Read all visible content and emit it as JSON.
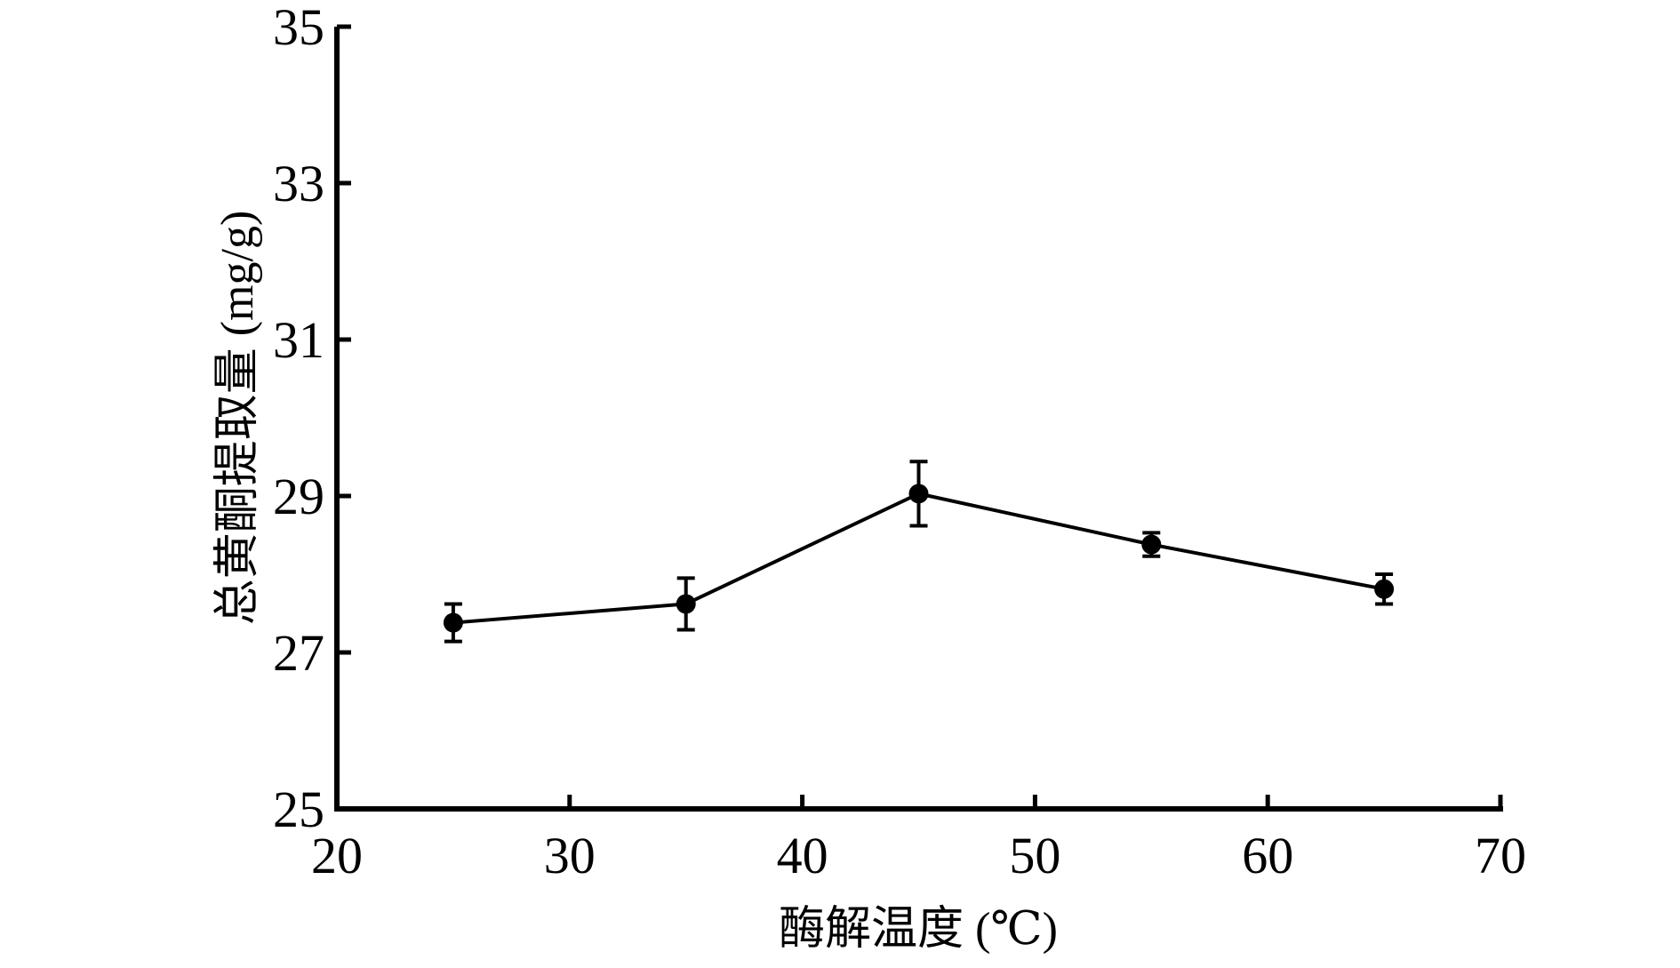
{
  "chart_data": {
    "type": "line",
    "x_label": "酶解温度 (℃)",
    "y_label": "总黄酮提取量 (mg/g)",
    "xlim": [
      20,
      70
    ],
    "xticks": [
      20,
      30,
      40,
      50,
      60,
      70
    ],
    "ylim": [
      25,
      35
    ],
    "yticks": [
      25,
      27,
      29,
      31,
      33,
      35
    ],
    "x": [
      25,
      35,
      45,
      55,
      65
    ],
    "series": [
      {
        "color": "#000000",
        "values": [
          27.38,
          27.62,
          29.03,
          28.38,
          27.81
        ],
        "errors": [
          0.24,
          0.33,
          0.41,
          0.15,
          0.19
        ]
      }
    ]
  }
}
